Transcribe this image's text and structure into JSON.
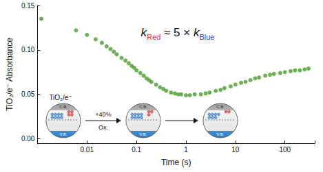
{
  "chart_data": {
    "type": "scatter",
    "x_label": "Time (s)",
    "y_label": "TiO₂/e⁻ Absorbance",
    "log": "x",
    "grid": false,
    "color": "#4a9e2a",
    "marker": "circle",
    "x": [
      0.0012,
      0.006,
      0.01,
      0.015,
      0.02,
      0.025,
      0.03,
      0.035,
      0.04,
      0.05,
      0.06,
      0.07,
      0.08,
      0.09,
      0.1,
      0.12,
      0.14,
      0.16,
      0.18,
      0.2,
      0.25,
      0.3,
      0.35,
      0.4,
      0.5,
      0.6,
      0.7,
      0.8,
      1.0,
      1.2,
      1.5,
      2,
      2.5,
      3,
      4,
      5,
      6,
      8,
      10,
      13,
      16,
      20,
      25,
      30,
      40,
      50,
      60,
      80,
      100,
      130,
      160,
      200,
      250,
      300
    ],
    "values": [
      0.135,
      0.122,
      0.117,
      0.112,
      0.108,
      0.104,
      0.101,
      0.098,
      0.095,
      0.091,
      0.088,
      0.085,
      0.082,
      0.08,
      0.077,
      0.074,
      0.071,
      0.068,
      0.066,
      0.064,
      0.061,
      0.058,
      0.056,
      0.054,
      0.052,
      0.051,
      0.05,
      0.05,
      0.049,
      0.049,
      0.05,
      0.05,
      0.051,
      0.052,
      0.054,
      0.055,
      0.057,
      0.059,
      0.061,
      0.063,
      0.064,
      0.066,
      0.068,
      0.069,
      0.071,
      0.072,
      0.073,
      0.074,
      0.075,
      0.076,
      0.077,
      0.077,
      0.078,
      0.079
    ],
    "xlim": [
      0.001,
      400
    ],
    "xticks": [
      0.01,
      0.1,
      1,
      10,
      100
    ],
    "ylim": [
      -0.005,
      0.15
    ],
    "yticks": [
      {
        "value": 0,
        "label": "0.00"
      },
      {
        "value": 0.05,
        "label": "0.05"
      },
      {
        "value": 0.1,
        "label": "0.10"
      },
      {
        "value": 0.15,
        "label": "0.15"
      }
    ],
    "annotation": [
      {
        "text": "k",
        "italic": true
      },
      {
        "text": "Red",
        "color": "#e0302a",
        "sub": true
      },
      {
        "text": " ≈ 5 × "
      },
      {
        "text": "k",
        "italic": true
      },
      {
        "text": "Blue",
        "color": "#2a3fd0",
        "sub": true
      }
    ],
    "inset": {
      "label": "TiO₂/e⁻",
      "step_label": [
        "+40%",
        "Ox."
      ],
      "band_labels": [
        "C.B.",
        "V.B."
      ]
    }
  }
}
